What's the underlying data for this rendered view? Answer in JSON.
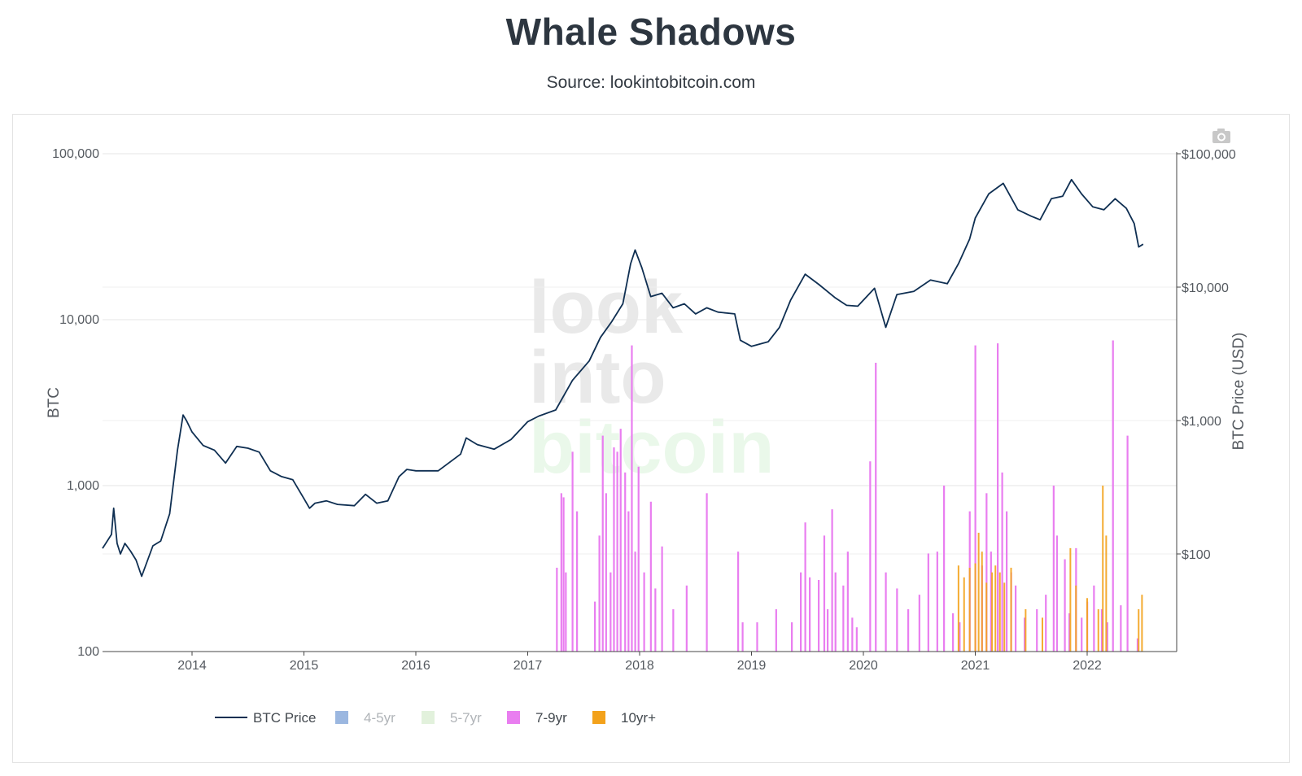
{
  "header": {
    "title": "Whale Shadows",
    "subtitle": "Source: lookintobitcoin.com"
  },
  "watermark": {
    "lines": [
      "look",
      "into",
      "bitcoin"
    ]
  },
  "toolbar": {
    "icon": "camera-icon"
  },
  "colors": {
    "price": "#0f2f52",
    "band_4_5": "#9bb7e0",
    "band_5_7": "#e2f1dc",
    "band_7_9": "#e97ef0",
    "band_10": "#f3a21b",
    "grid": "#e6e6e6",
    "axis": "#444444"
  },
  "chart_data": {
    "type": "line+bar",
    "x_axis": {
      "ticks": [
        "2014",
        "2015",
        "2016",
        "2017",
        "2018",
        "2019",
        "2020",
        "2021",
        "2022"
      ]
    },
    "y_left": {
      "title": "BTC",
      "scale": "log",
      "range": [
        100,
        100000
      ],
      "ticks": [
        "100",
        "1,000",
        "10,000",
        "100,000"
      ]
    },
    "y_right": {
      "title": "BTC Price (USD)",
      "scale": "log",
      "range": [
        20,
        100000
      ],
      "ticks": [
        "$100",
        "$1,000",
        "$10,000",
        "$100,000"
      ]
    },
    "grid": true,
    "legend": {
      "placement": "bottom-left",
      "items": [
        {
          "label": "BTC Price",
          "kind": "line",
          "color": "#0f2f52",
          "active": true
        },
        {
          "label": "4-5yr",
          "kind": "box",
          "color": "#9bb7e0",
          "active": false
        },
        {
          "label": "5-7yr",
          "kind": "box",
          "color": "#e2f1dc",
          "active": false
        },
        {
          "label": "7-9yr",
          "kind": "box",
          "color": "#e97ef0",
          "active": true
        },
        {
          "label": "10yr+",
          "kind": "box",
          "color": "#f3a21b",
          "active": true
        }
      ]
    },
    "series": [
      {
        "name": "BTC Price",
        "axis": "right",
        "points": [
          [
            2013.2,
            110
          ],
          [
            2013.28,
            140
          ],
          [
            2013.3,
            220
          ],
          [
            2013.33,
            120
          ],
          [
            2013.36,
            100
          ],
          [
            2013.4,
            120
          ],
          [
            2013.45,
            105
          ],
          [
            2013.5,
            90
          ],
          [
            2013.55,
            68
          ],
          [
            2013.65,
            115
          ],
          [
            2013.72,
            125
          ],
          [
            2013.8,
            200
          ],
          [
            2013.87,
            600
          ],
          [
            2013.92,
            1100
          ],
          [
            2013.95,
            1000
          ],
          [
            2014.0,
            820
          ],
          [
            2014.1,
            650
          ],
          [
            2014.2,
            600
          ],
          [
            2014.3,
            480
          ],
          [
            2014.4,
            640
          ],
          [
            2014.5,
            620
          ],
          [
            2014.6,
            580
          ],
          [
            2014.7,
            420
          ],
          [
            2014.8,
            380
          ],
          [
            2014.9,
            360
          ],
          [
            2015.0,
            260
          ],
          [
            2015.05,
            220
          ],
          [
            2015.1,
            240
          ],
          [
            2015.2,
            250
          ],
          [
            2015.3,
            235
          ],
          [
            2015.45,
            230
          ],
          [
            2015.55,
            280
          ],
          [
            2015.65,
            240
          ],
          [
            2015.75,
            250
          ],
          [
            2015.85,
            380
          ],
          [
            2015.92,
            430
          ],
          [
            2016.0,
            420
          ],
          [
            2016.2,
            420
          ],
          [
            2016.4,
            560
          ],
          [
            2016.45,
            740
          ],
          [
            2016.55,
            660
          ],
          [
            2016.7,
            610
          ],
          [
            2016.85,
            720
          ],
          [
            2017.0,
            980
          ],
          [
            2017.1,
            1080
          ],
          [
            2017.25,
            1200
          ],
          [
            2017.4,
            2000
          ],
          [
            2017.5,
            2500
          ],
          [
            2017.55,
            2800
          ],
          [
            2017.65,
            4200
          ],
          [
            2017.75,
            5500
          ],
          [
            2017.85,
            7500
          ],
          [
            2017.92,
            15000
          ],
          [
            2017.96,
            19000
          ],
          [
            2018.02,
            14000
          ],
          [
            2018.1,
            8500
          ],
          [
            2018.2,
            9000
          ],
          [
            2018.3,
            7000
          ],
          [
            2018.4,
            7500
          ],
          [
            2018.5,
            6300
          ],
          [
            2018.6,
            7000
          ],
          [
            2018.7,
            6500
          ],
          [
            2018.85,
            6300
          ],
          [
            2018.9,
            4000
          ],
          [
            2019.0,
            3600
          ],
          [
            2019.15,
            3900
          ],
          [
            2019.25,
            5000
          ],
          [
            2019.35,
            8000
          ],
          [
            2019.48,
            12500
          ],
          [
            2019.6,
            10500
          ],
          [
            2019.75,
            8300
          ],
          [
            2019.85,
            7300
          ],
          [
            2019.95,
            7200
          ],
          [
            2020.1,
            9800
          ],
          [
            2020.2,
            5000
          ],
          [
            2020.3,
            8800
          ],
          [
            2020.45,
            9300
          ],
          [
            2020.6,
            11300
          ],
          [
            2020.75,
            10600
          ],
          [
            2020.85,
            15000
          ],
          [
            2020.95,
            23000
          ],
          [
            2021.0,
            33000
          ],
          [
            2021.12,
            50000
          ],
          [
            2021.25,
            60000
          ],
          [
            2021.38,
            38000
          ],
          [
            2021.5,
            34000
          ],
          [
            2021.58,
            32000
          ],
          [
            2021.68,
            46000
          ],
          [
            2021.78,
            48000
          ],
          [
            2021.86,
            64000
          ],
          [
            2021.95,
            50000
          ],
          [
            2022.05,
            40000
          ],
          [
            2022.15,
            38000
          ],
          [
            2022.25,
            46000
          ],
          [
            2022.35,
            39000
          ],
          [
            2022.42,
            30000
          ],
          [
            2022.46,
            20000
          ],
          [
            2022.5,
            21000
          ]
        ]
      },
      {
        "name": "7-9yr",
        "axis": "left",
        "bars": [
          [
            2017.26,
            320
          ],
          [
            2017.3,
            900
          ],
          [
            2017.32,
            850
          ],
          [
            2017.34,
            300
          ],
          [
            2017.4,
            1600
          ],
          [
            2017.44,
            700
          ],
          [
            2017.6,
            200
          ],
          [
            2017.64,
            500
          ],
          [
            2017.67,
            2000
          ],
          [
            2017.7,
            900
          ],
          [
            2017.74,
            300
          ],
          [
            2017.77,
            1700
          ],
          [
            2017.8,
            1600
          ],
          [
            2017.83,
            2200
          ],
          [
            2017.87,
            1200
          ],
          [
            2017.9,
            700
          ],
          [
            2017.93,
            7000
          ],
          [
            2017.96,
            400
          ],
          [
            2017.99,
            1300
          ],
          [
            2018.04,
            300
          ],
          [
            2018.1,
            800
          ],
          [
            2018.14,
            240
          ],
          [
            2018.2,
            430
          ],
          [
            2018.3,
            180
          ],
          [
            2018.42,
            250
          ],
          [
            2018.6,
            900
          ],
          [
            2018.88,
            400
          ],
          [
            2018.92,
            150
          ],
          [
            2019.05,
            150
          ],
          [
            2019.22,
            180
          ],
          [
            2019.36,
            150
          ],
          [
            2019.44,
            300
          ],
          [
            2019.48,
            600
          ],
          [
            2019.52,
            280
          ],
          [
            2019.6,
            270
          ],
          [
            2019.65,
            500
          ],
          [
            2019.68,
            180
          ],
          [
            2019.72,
            720
          ],
          [
            2019.75,
            300
          ],
          [
            2019.82,
            250
          ],
          [
            2019.86,
            400
          ],
          [
            2019.9,
            160
          ],
          [
            2019.94,
            140
          ],
          [
            2020.06,
            1400
          ],
          [
            2020.11,
            5500
          ],
          [
            2020.2,
            300
          ],
          [
            2020.3,
            240
          ],
          [
            2020.4,
            180
          ],
          [
            2020.5,
            220
          ],
          [
            2020.58,
            390
          ],
          [
            2020.66,
            400
          ],
          [
            2020.72,
            1000
          ],
          [
            2020.8,
            170
          ],
          [
            2020.86,
            150
          ],
          [
            2020.95,
            700
          ],
          [
            2021.0,
            7000
          ],
          [
            2021.06,
            330
          ],
          [
            2021.1,
            900
          ],
          [
            2021.14,
            400
          ],
          [
            2021.2,
            7200
          ],
          [
            2021.24,
            1200
          ],
          [
            2021.28,
            700
          ],
          [
            2021.32,
            300
          ],
          [
            2021.36,
            250
          ],
          [
            2021.44,
            160
          ],
          [
            2021.55,
            180
          ],
          [
            2021.63,
            220
          ],
          [
            2021.7,
            1000
          ],
          [
            2021.73,
            500
          ],
          [
            2021.8,
            360
          ],
          [
            2021.84,
            170
          ],
          [
            2021.9,
            420
          ],
          [
            2021.95,
            160
          ],
          [
            2022.0,
            200
          ],
          [
            2022.06,
            250
          ],
          [
            2022.13,
            180
          ],
          [
            2022.18,
            150
          ],
          [
            2022.23,
            7500
          ],
          [
            2022.3,
            190
          ],
          [
            2022.36,
            2000
          ],
          [
            2022.45,
            120
          ]
        ]
      },
      {
        "name": "10yr+",
        "axis": "left",
        "bars": [
          [
            2020.85,
            330
          ],
          [
            2020.9,
            280
          ],
          [
            2020.95,
            320
          ],
          [
            2021.0,
            340
          ],
          [
            2021.03,
            520
          ],
          [
            2021.06,
            400
          ],
          [
            2021.1,
            260
          ],
          [
            2021.15,
            300
          ],
          [
            2021.18,
            330
          ],
          [
            2021.22,
            300
          ],
          [
            2021.26,
            260
          ],
          [
            2021.32,
            320
          ],
          [
            2021.45,
            180
          ],
          [
            2021.6,
            160
          ],
          [
            2021.85,
            420
          ],
          [
            2021.9,
            250
          ],
          [
            2022.0,
            210
          ],
          [
            2022.1,
            180
          ],
          [
            2022.14,
            1000
          ],
          [
            2022.17,
            500
          ],
          [
            2022.46,
            180
          ],
          [
            2022.49,
            220
          ]
        ]
      }
    ]
  }
}
